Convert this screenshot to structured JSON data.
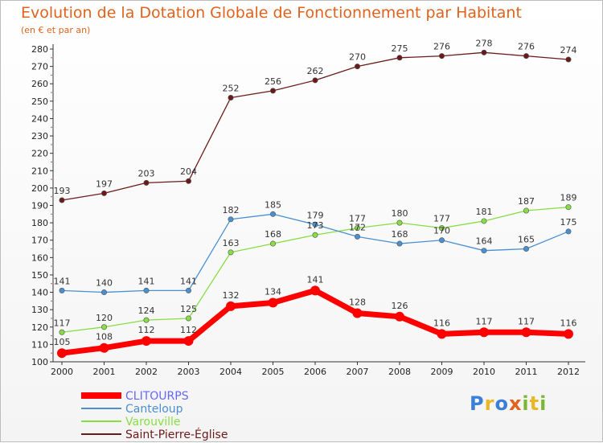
{
  "title": "Evolution de la Dotation Globale de Fonctionnement par Habitant",
  "subtitle": "(en € et par an)",
  "brand": "Proxiti",
  "chart_data": {
    "type": "line",
    "x": [
      "2000",
      "2001",
      "2002",
      "2003",
      "2004",
      "2005",
      "2006",
      "2007",
      "2008",
      "2009",
      "2010",
      "2011",
      "2012"
    ],
    "ylim": [
      100,
      280
    ],
    "yticks": [
      100,
      110,
      120,
      130,
      140,
      150,
      160,
      170,
      180,
      190,
      200,
      210,
      220,
      230,
      240,
      250,
      260,
      270,
      280
    ],
    "grid": false,
    "legend": "bottom-left",
    "series": [
      {
        "name": "CLITOURPS",
        "color": "#ff0000",
        "legend_color": "#6666ff",
        "values": [
          105,
          108,
          112,
          112,
          132,
          134,
          141,
          128,
          126,
          116,
          117,
          117,
          116
        ]
      },
      {
        "name": "Canteloup",
        "color": "#4a8fd0",
        "values": [
          141,
          140,
          141,
          141,
          182,
          185,
          179,
          172,
          168,
          170,
          164,
          165,
          175
        ]
      },
      {
        "name": "Varouville",
        "color": "#88dd44",
        "values": [
          117,
          120,
          124,
          125,
          163,
          168,
          173,
          177,
          180,
          177,
          181,
          187,
          189
        ]
      },
      {
        "name": "Saint-Pierre-Église",
        "color": "#6b1a1a",
        "values": [
          193,
          197,
          203,
          204,
          252,
          256,
          262,
          270,
          275,
          276,
          278,
          276,
          274
        ]
      }
    ]
  }
}
